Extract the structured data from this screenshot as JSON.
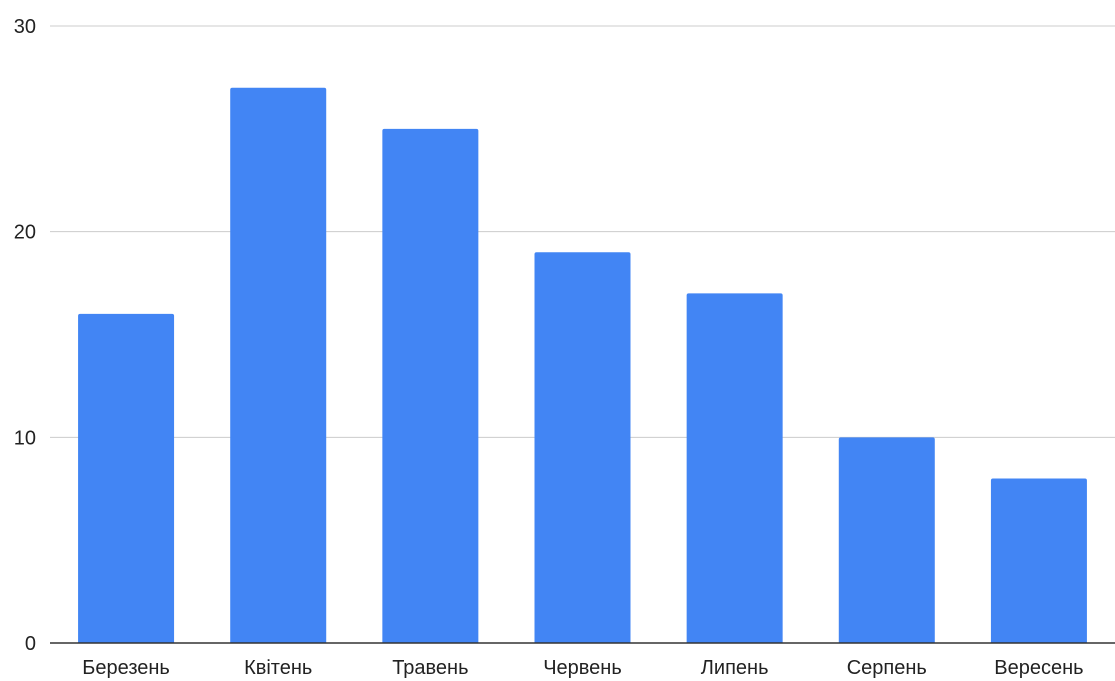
{
  "chart_data": {
    "type": "bar",
    "categories": [
      "Березень",
      "Квітень",
      "Травень",
      "Червень",
      "Липень",
      "Серпень",
      "Вересень"
    ],
    "values": [
      16,
      27,
      25,
      19,
      17,
      10,
      8
    ],
    "title": "",
    "xlabel": "",
    "ylabel": "",
    "ylim": [
      0,
      30
    ],
    "yticks": [
      0,
      10,
      20,
      30
    ],
    "grid": true,
    "legend": "none",
    "colors": {
      "bar": "#4285f4",
      "grid": "#cccccc",
      "axis": "#333333",
      "text": "#222222"
    }
  }
}
